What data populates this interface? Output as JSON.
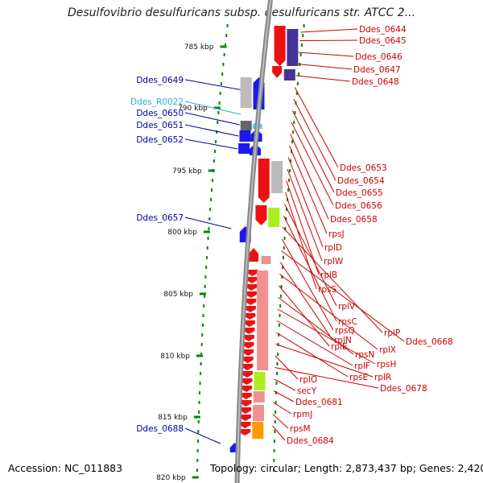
{
  "title": "Desulfovibrio desulfuricans subsp. desulfuricans str. ATCC 2...",
  "footer": {
    "accession": "Accession: NC_011883",
    "stats": "Topology: circular; Length: 2,873,437 bp; Genes: 2,420"
  },
  "colors": {
    "red_label": "#cc0000",
    "blue_label": "#000099",
    "rna_label": "#33aadd",
    "backbone": "#888888",
    "tick": "#008800"
  },
  "ticks": [
    "785 kbp",
    "790 kbp",
    "795 kbp",
    "800 kbp",
    "805 kbp",
    "810 kbp",
    "815 kbp",
    "820 kbp"
  ],
  "left_labels": [
    "Ddes_0649",
    "Ddes_R0022",
    "Ddes_0650",
    "Ddes_0651",
    "Ddes_0652",
    "Ddes_0657",
    "Ddes_0688"
  ],
  "right_labels": [
    "Ddes_0644",
    "Ddes_0645",
    "Ddes_0646",
    "Ddes_0647",
    "Ddes_0648",
    "Ddes_0653",
    "Ddes_0654",
    "Ddes_0655",
    "Ddes_0656",
    "Ddes_0658",
    "rpsJ",
    "rplD",
    "rplW",
    "rplB",
    "rpsS",
    "rplV",
    "rpsC",
    "rplP",
    "rpsQ",
    "Ddes_0668",
    "rplN",
    "rplX",
    "rplE",
    "rpsN",
    "rpsH",
    "rplF",
    "rpsE",
    "rplR",
    "rplO",
    "Ddes_0678",
    "secY",
    "Ddes_0681",
    "rpmJ",
    "rpsM",
    "Ddes_0684"
  ]
}
